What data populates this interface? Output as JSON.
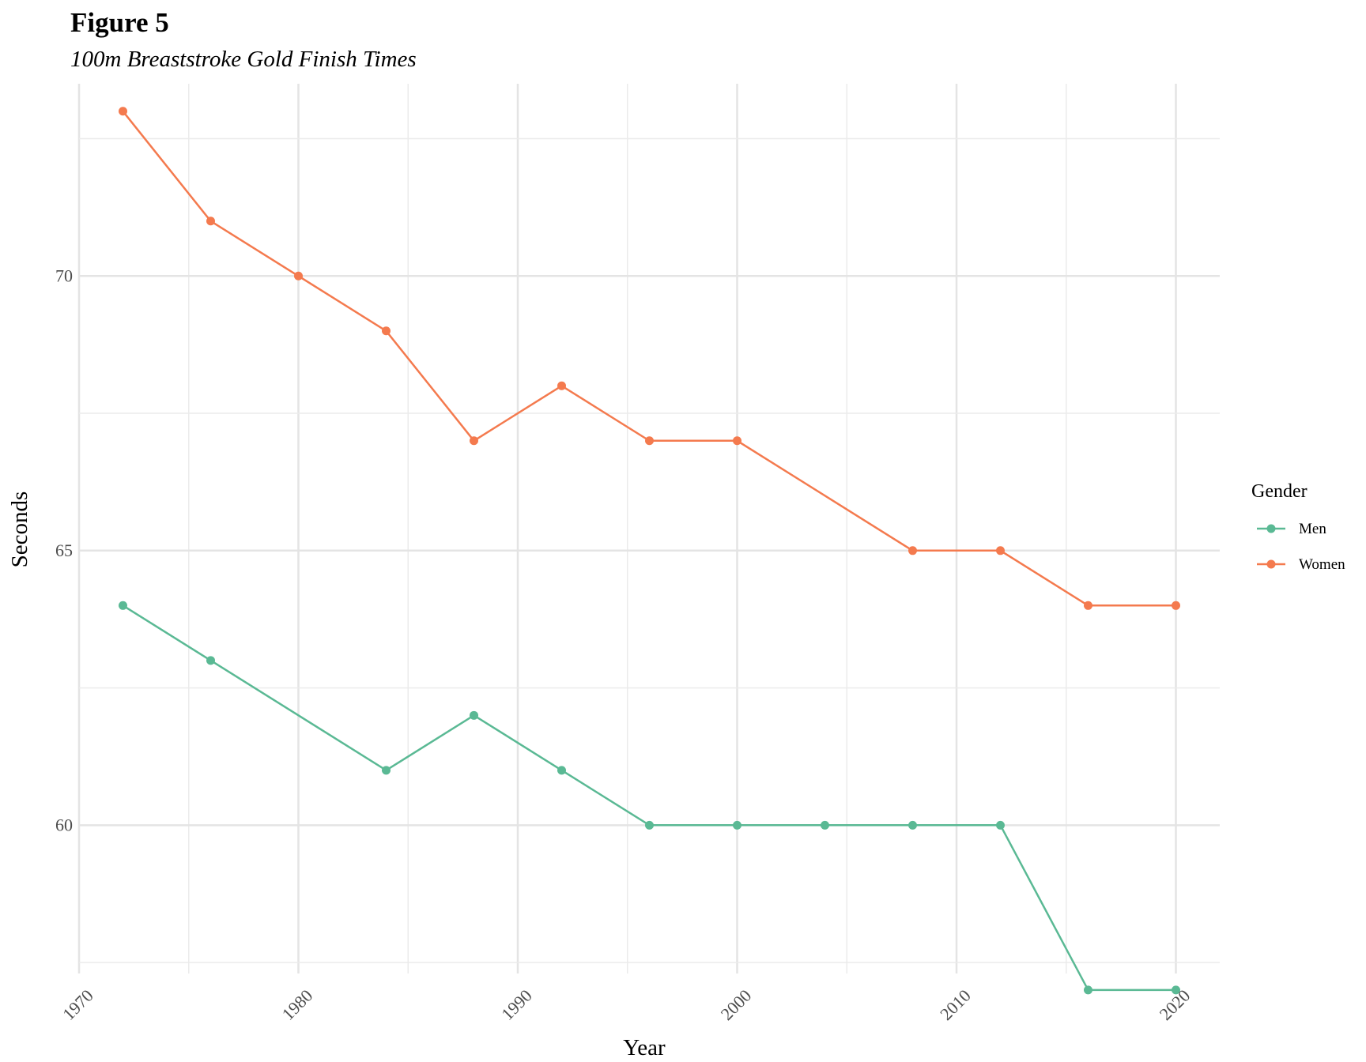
{
  "header": {
    "title": "Figure 5",
    "subtitle": "100m Breaststroke Gold Finish Times"
  },
  "chart_data": {
    "type": "line",
    "title": "Figure 5",
    "subtitle": "100m Breaststroke Gold Finish Times",
    "xlabel": "Year",
    "ylabel": "Seconds",
    "xlim": [
      1970,
      2022
    ],
    "ylim": [
      57.3,
      73.5
    ],
    "x_ticks": [
      1970,
      1980,
      1990,
      2000,
      2010,
      2020
    ],
    "y_ticks": [
      60,
      65,
      70
    ],
    "grid": true,
    "legend": {
      "title": "Gender",
      "position": "right"
    },
    "series": [
      {
        "name": "Men",
        "color": "#5ab994",
        "x": [
          1972,
          1976,
          1984,
          1988,
          1992,
          1996,
          2000,
          2004,
          2008,
          2012,
          2016,
          2020
        ],
        "values": [
          64,
          63,
          61,
          62,
          61,
          60,
          60,
          60,
          60,
          60,
          57,
          57
        ]
      },
      {
        "name": "Women",
        "color": "#f47a4e",
        "x": [
          1972,
          1976,
          1980,
          1984,
          1988,
          1992,
          1996,
          2000,
          2008,
          2012,
          2016,
          2020
        ],
        "values": [
          73,
          71,
          70,
          69,
          67,
          68,
          67,
          67,
          65,
          65,
          64,
          64
        ]
      }
    ]
  }
}
